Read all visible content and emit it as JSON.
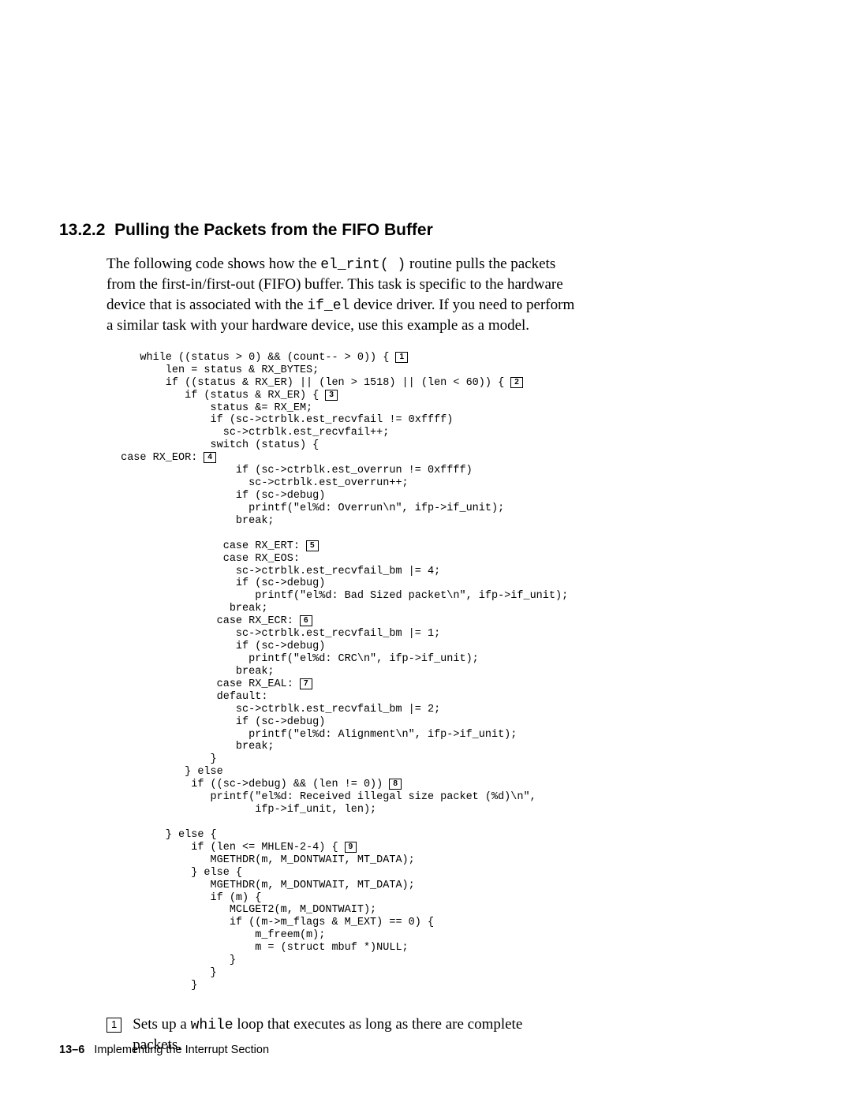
{
  "section": {
    "number": "13.2.2",
    "title": "Pulling the Packets from the FIFO Buffer"
  },
  "intro": {
    "line1_a": "The following code shows how the ",
    "line1_code": "el_rint( )",
    "line1_b": " routine pulls the packets",
    "line2": "from the first-in/first-out (FIFO) buffer. This task is specific to the hardware",
    "line3_a": "device that is associated with the ",
    "line3_code": "if_el",
    "line3_b": " device driver. If you need to perform",
    "line4": "a similar task with your hardware device, use this example as a model."
  },
  "code": {
    "l01a": "    while ((status > 0) && (count-- > 0)) { ",
    "l02": "        len = status & RX_BYTES;",
    "l03a": "        if ((status & RX_ER) || (len > 1518) || (len < 60)) { ",
    "l04a": "           if (status & RX_ER) { ",
    "l05": "               status &= RX_EM;",
    "l06": "               if (sc->ctrblk.est_recvfail != 0xffff)",
    "l07": "                 sc->ctrblk.est_recvfail++;",
    "l08": "               switch (status) {",
    "l09a": " case RX_EOR: ",
    "l10": "                   if (sc->ctrblk.est_overrun != 0xffff)",
    "l11": "                     sc->ctrblk.est_overrun++;",
    "l12": "                   if (sc->debug)",
    "l13": "                     printf(\"el%d: Overrun\\n\", ifp->if_unit);",
    "l14": "                   break;",
    "l15": "",
    "l16a": "                 case RX_ERT: ",
    "l17": "                 case RX_EOS:",
    "l18": "                   sc->ctrblk.est_recvfail_bm |= 4;",
    "l19": "                   if (sc->debug)",
    "l20": "                      printf(\"el%d: Bad Sized packet\\n\", ifp->if_unit);",
    "l21": "                  break;",
    "l22a": "                case RX_ECR: ",
    "l23": "                   sc->ctrblk.est_recvfail_bm |= 1;",
    "l24": "                   if (sc->debug)",
    "l25": "                     printf(\"el%d: CRC\\n\", ifp->if_unit);",
    "l26": "                   break;",
    "l27a": "                case RX_EAL: ",
    "l28": "                default:",
    "l29": "                   sc->ctrblk.est_recvfail_bm |= 2;",
    "l30": "                   if (sc->debug)",
    "l31": "                     printf(\"el%d: Alignment\\n\", ifp->if_unit);",
    "l32": "                   break;",
    "l33": "               }",
    "l34": "           } else",
    "l35a": "            if ((sc->debug) && (len != 0)) ",
    "l36": "               printf(\"el%d: Received illegal size packet (%d)\\n\",",
    "l37": "                      ifp->if_unit, len);",
    "l38": "",
    "l39": "        } else {",
    "l40a": "            if (len <= MHLEN-2-4) { ",
    "l41": "               MGETHDR(m, M_DONTWAIT, MT_DATA);",
    "l42": "            } else {",
    "l43": "               MGETHDR(m, M_DONTWAIT, MT_DATA);",
    "l44": "               if (m) {",
    "l45": "                  MCLGET2(m, M_DONTWAIT);",
    "l46": "                  if ((m->m_flags & M_EXT) == 0) {",
    "l47": "                      m_freem(m);",
    "l48": "                      m = (struct mbuf *)NULL;",
    "l49": "                  }",
    "l50": "               }",
    "l51": "            }"
  },
  "callouts": {
    "c1": "1",
    "c2": "2",
    "c3": "3",
    "c4": "4",
    "c5": "5",
    "c6": "6",
    "c7": "7",
    "c8": "8",
    "c9": "9"
  },
  "note": {
    "num": "1",
    "text_a": "Sets up a ",
    "text_code": "while",
    "text_b": " loop that executes as long as there are complete",
    "text_c": "packets."
  },
  "footer": {
    "page": "13–6",
    "label": "Implementing the Interrupt Section"
  }
}
